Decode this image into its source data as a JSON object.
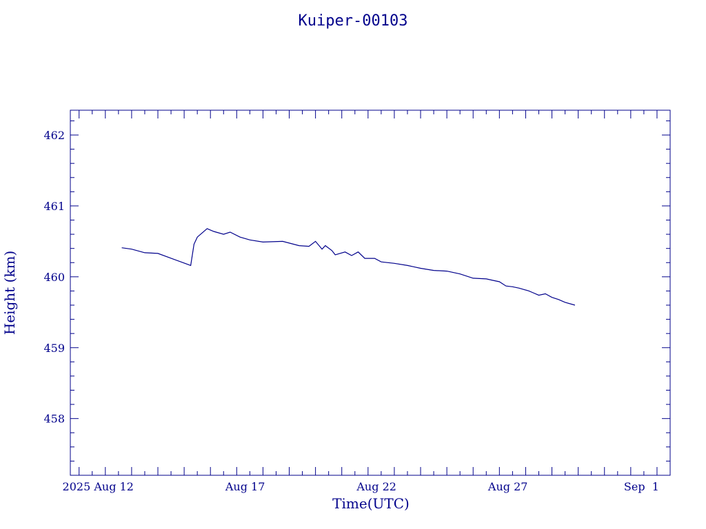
{
  "chart_data": {
    "type": "line",
    "title": "Kuiper-00103",
    "xlabel": "Time(UTC)",
    "ylabel": "Height (km)",
    "color": "#00008b",
    "grid": false,
    "legend": "none",
    "xlim": [
      "2025-08-09T16:00",
      "2025-09-01T12:00"
    ],
    "ylim": [
      457.2,
      462.35
    ],
    "y_ticks": [
      458,
      459,
      460,
      461,
      462
    ],
    "x_tick_labels": [
      {
        "date": "2025-08-12",
        "label": "2025 Aug 12"
      },
      {
        "date": "2025-08-17",
        "label": "Aug 17"
      },
      {
        "date": "2025-08-22",
        "label": "Aug 22"
      },
      {
        "date": "2025-08-27",
        "label": "Aug 27"
      },
      {
        "date": "2025-09-01",
        "label": "Sep  1"
      }
    ],
    "series": [
      {
        "x": [
          "2025-08-11T15:00",
          "2025-08-12T00:00",
          "2025-08-12T12:00",
          "2025-08-13T00:00",
          "2025-08-14T06:00",
          "2025-08-14T09:00",
          "2025-08-14T12:00",
          "2025-08-14T21:00",
          "2025-08-15T03:00",
          "2025-08-15T12:00",
          "2025-08-15T18:00",
          "2025-08-16T03:00",
          "2025-08-16T12:00",
          "2025-08-17T00:00",
          "2025-08-17T18:00",
          "2025-08-18T09:00",
          "2025-08-18T18:00",
          "2025-08-19T00:00",
          "2025-08-19T06:00",
          "2025-08-19T09:00",
          "2025-08-19T15:00",
          "2025-08-19T18:00",
          "2025-08-20T03:00",
          "2025-08-20T09:00",
          "2025-08-20T15:00",
          "2025-08-20T21:00",
          "2025-08-21T06:00",
          "2025-08-21T12:00",
          "2025-08-22T00:00",
          "2025-08-22T12:00",
          "2025-08-22T18:00",
          "2025-08-23T00:00",
          "2025-08-23T12:00",
          "2025-08-24T00:00",
          "2025-08-24T12:00",
          "2025-08-25T00:00",
          "2025-08-25T12:00",
          "2025-08-25T18:00",
          "2025-08-26T00:00",
          "2025-08-26T06:00",
          "2025-08-26T12:00",
          "2025-08-26T18:00",
          "2025-08-27T03:00",
          "2025-08-27T06:00",
          "2025-08-27T12:00",
          "2025-08-27T18:00",
          "2025-08-28T00:00",
          "2025-08-28T06:00",
          "2025-08-28T12:00",
          "2025-08-28T21:00"
        ],
        "values": [
          460.41,
          460.39,
          460.34,
          460.33,
          460.16,
          460.46,
          460.56,
          460.68,
          460.64,
          460.6,
          460.63,
          460.56,
          460.52,
          460.49,
          460.5,
          460.44,
          460.43,
          460.5,
          460.39,
          460.44,
          460.37,
          460.31,
          460.35,
          460.3,
          460.35,
          460.26,
          460.26,
          460.21,
          460.19,
          460.16,
          460.14,
          460.12,
          460.09,
          460.08,
          460.04,
          459.98,
          459.97,
          459.95,
          459.93,
          459.87,
          459.86,
          459.84,
          459.8,
          459.78,
          459.74,
          459.76,
          459.71,
          459.68,
          459.64,
          459.6
        ]
      }
    ]
  }
}
